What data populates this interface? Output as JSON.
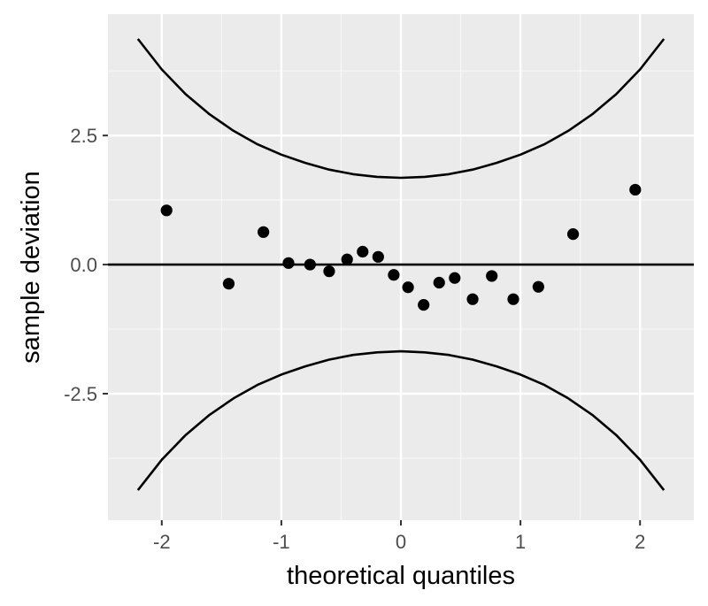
{
  "chart_data": {
    "type": "scatter",
    "title": "",
    "xlabel": "theoretical quantiles",
    "ylabel": "sample deviation",
    "xlim": [
      -2.45,
      2.45
    ],
    "ylim": [
      -4.95,
      4.85
    ],
    "x_ticks": [
      -2,
      -1,
      0,
      1,
      2
    ],
    "x_tick_labels": [
      "-2",
      "-1",
      "0",
      "1",
      "2"
    ],
    "y_ticks": [
      -2.5,
      0.0,
      2.5
    ],
    "y_tick_labels": [
      "-2.5",
      "0.0",
      "2.5"
    ],
    "grid": true,
    "legend": "none",
    "reference_line": {
      "y": 0
    },
    "confidence_band": {
      "x": [
        -2.2,
        -2.0,
        -1.8,
        -1.6,
        -1.4,
        -1.2,
        -1.0,
        -0.8,
        -0.6,
        -0.4,
        -0.2,
        0.0,
        0.2,
        0.4,
        0.6,
        0.8,
        1.0,
        1.2,
        1.4,
        1.6,
        1.8,
        2.0,
        2.2
      ],
      "upper": [
        4.37,
        3.78,
        3.3,
        2.91,
        2.59,
        2.33,
        2.13,
        1.97,
        1.84,
        1.75,
        1.7,
        1.68,
        1.7,
        1.75,
        1.84,
        1.97,
        2.13,
        2.33,
        2.59,
        2.91,
        3.3,
        3.78,
        4.37
      ],
      "lower": [
        -4.37,
        -3.78,
        -3.3,
        -2.91,
        -2.59,
        -2.33,
        -2.13,
        -1.97,
        -1.84,
        -1.75,
        -1.7,
        -1.68,
        -1.7,
        -1.75,
        -1.84,
        -1.97,
        -2.13,
        -2.33,
        -2.59,
        -2.91,
        -3.3,
        -3.78,
        -4.37
      ]
    },
    "points": {
      "x": [
        -1.96,
        -1.44,
        -1.15,
        -0.94,
        -0.76,
        -0.6,
        -0.45,
        -0.32,
        -0.19,
        -0.06,
        0.06,
        0.19,
        0.32,
        0.45,
        0.6,
        0.76,
        0.94,
        1.15,
        1.44,
        1.96
      ],
      "y": [
        1.05,
        -0.37,
        0.63,
        0.03,
        0.0,
        -0.13,
        0.1,
        0.25,
        0.15,
        -0.2,
        -0.44,
        -0.78,
        -0.35,
        -0.26,
        -0.67,
        -0.22,
        -0.67,
        -0.43,
        0.59,
        1.45
      ]
    }
  },
  "colors": {
    "panel": "#ebebeb",
    "grid_major": "#ffffff",
    "grid_minor": "#f7f7f7",
    "ink": "#000000",
    "tick": "#333333",
    "tick_label": "#4d4d4d"
  }
}
